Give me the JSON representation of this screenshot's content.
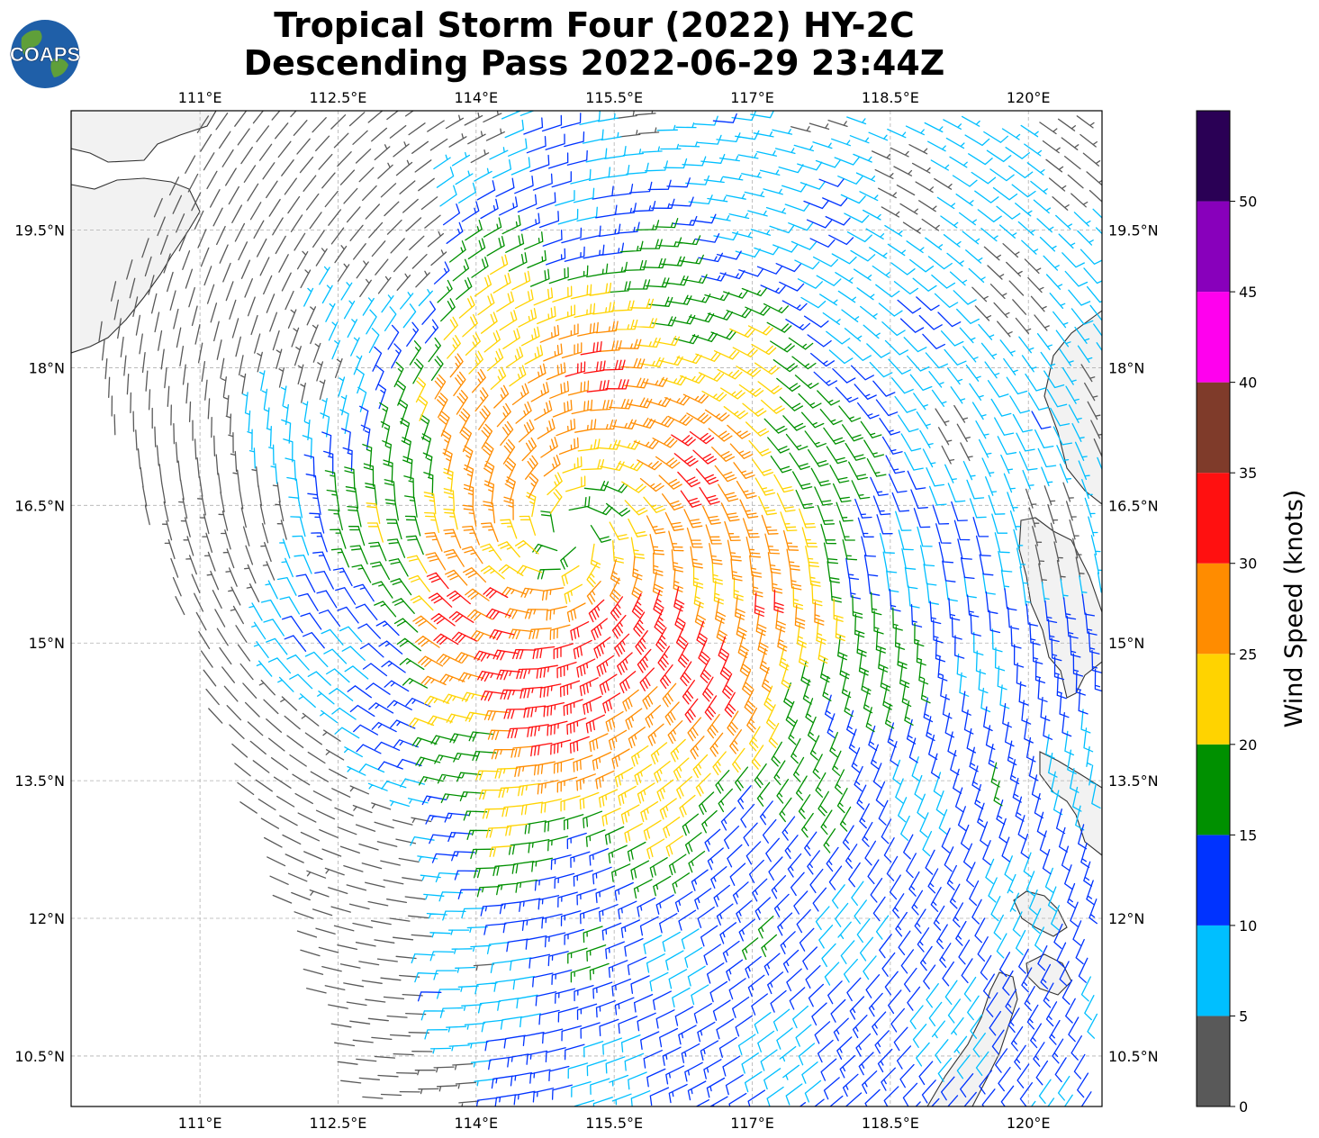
{
  "title_line1": "Tropical Storm Four (2022) HY-2C",
  "title_line2": "Descending Pass 2022-06-29 23:44Z",
  "logo_text": "COAPS",
  "colors": {
    "land": "#f2f2f2",
    "coast": "#333333",
    "grid": "#b0b0b0"
  },
  "chart_data": {
    "type": "wind-barb-map",
    "x_ticks": [
      "111°E",
      "112.5°E",
      "114°E",
      "115.5°E",
      "117°E",
      "118.5°E",
      "120°E"
    ],
    "y_ticks": [
      "19.5°N",
      "18°N",
      "16.5°N",
      "15°N",
      "13.5°N",
      "12°N",
      "10.5°N"
    ],
    "lon_range": [
      109.6,
      120.8
    ],
    "lat_range": [
      9.95,
      20.8
    ],
    "storm_center": {
      "lon": 115.0,
      "lat": 16.2
    },
    "colorbar": {
      "label": "Wind Speed (knots)",
      "ticks": [
        "0",
        "5",
        "10",
        "15",
        "20",
        "25",
        "30",
        "35",
        "40",
        "45",
        "50"
      ],
      "bins": [
        {
          "min": 0,
          "max": 5,
          "color": "#595959"
        },
        {
          "min": 5,
          "max": 10,
          "color": "#00bfff"
        },
        {
          "min": 10,
          "max": 15,
          "color": "#0033ff"
        },
        {
          "min": 15,
          "max": 20,
          "color": "#009000"
        },
        {
          "min": 20,
          "max": 25,
          "color": "#ffd300"
        },
        {
          "min": 25,
          "max": 30,
          "color": "#ff8c00"
        },
        {
          "min": 30,
          "max": 35,
          "color": "#ff1010"
        },
        {
          "min": 35,
          "max": 40,
          "color": "#7f3b2a"
        },
        {
          "min": 40,
          "max": 45,
          "color": "#ff00ee"
        },
        {
          "min": 45,
          "max": 50,
          "color": "#8800bb"
        },
        {
          "min": 50,
          "max": 55,
          "color": "#2a0055"
        }
      ]
    }
  }
}
